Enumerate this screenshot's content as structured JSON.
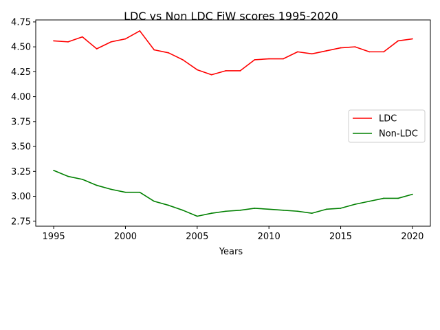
{
  "chart_data": {
    "type": "line",
    "title": "LDC vs Non LDC FiW scores 1995-2020",
    "xlabel": "Years",
    "ylabel": "",
    "xlim": [
      1993.75,
      2021.25
    ],
    "ylim": [
      2.7,
      4.77
    ],
    "xticks": [
      1995,
      2000,
      2005,
      2010,
      2015,
      2020
    ],
    "yticks": [
      2.75,
      3.0,
      3.25,
      3.5,
      3.75,
      4.0,
      4.25,
      4.5,
      4.75
    ],
    "xtick_labels": [
      "1995",
      "2000",
      "2005",
      "2010",
      "2015",
      "2020"
    ],
    "ytick_labels": [
      "2.75",
      "3.00",
      "3.25",
      "3.50",
      "3.75",
      "4.00",
      "4.25",
      "4.50",
      "4.75"
    ],
    "grid": false,
    "legend_position": "center-right",
    "x": [
      1995,
      1996,
      1997,
      1998,
      1999,
      2000,
      2001,
      2002,
      2003,
      2004,
      2005,
      2006,
      2007,
      2008,
      2009,
      2010,
      2011,
      2012,
      2013,
      2014,
      2015,
      2016,
      2017,
      2018,
      2019,
      2020
    ],
    "series": [
      {
        "name": "LDC",
        "color": "#ff0000",
        "values": [
          4.56,
          4.55,
          4.6,
          4.48,
          4.55,
          4.58,
          4.66,
          4.47,
          4.44,
          4.37,
          4.27,
          4.22,
          4.26,
          4.26,
          4.37,
          4.38,
          4.38,
          4.45,
          4.43,
          4.46,
          4.49,
          4.5,
          4.45,
          4.45,
          4.56,
          4.58
        ]
      },
      {
        "name": "Non-LDC",
        "color": "#008000",
        "values": [
          3.26,
          3.2,
          3.17,
          3.11,
          3.07,
          3.04,
          3.04,
          2.95,
          2.91,
          2.86,
          2.8,
          2.83,
          2.85,
          2.86,
          2.88,
          2.87,
          2.86,
          2.85,
          2.83,
          2.87,
          2.88,
          2.92,
          2.95,
          2.98,
          2.98,
          3.02
        ]
      }
    ]
  }
}
